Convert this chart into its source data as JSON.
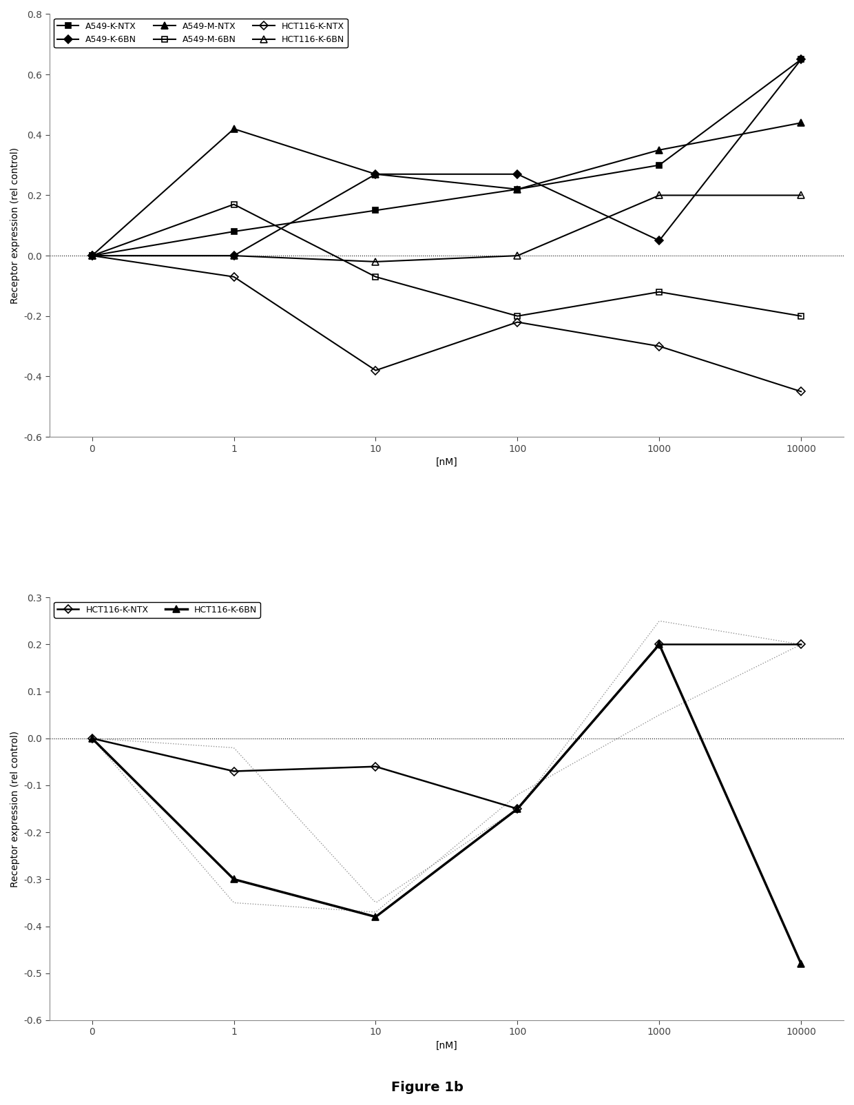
{
  "x_positions": [
    0,
    1,
    2,
    3,
    4,
    5
  ],
  "x_labels": [
    "0",
    "1",
    "10",
    "100",
    "1000",
    "10000"
  ],
  "top_chart": {
    "series": [
      {
        "label": "A549-K-NTX",
        "y": [
          0,
          0.08,
          0.15,
          0.22,
          0.3,
          0.65
        ],
        "marker": "s",
        "markersize": 6,
        "color": "#000000",
        "linestyle": "-",
        "fillstyle": "full",
        "linewidth": 1.5
      },
      {
        "label": "A549-K-6BN",
        "y": [
          0,
          0.0,
          0.27,
          0.27,
          0.05,
          0.65
        ],
        "marker": "D",
        "markersize": 6,
        "color": "#000000",
        "linestyle": "-",
        "fillstyle": "full",
        "linewidth": 1.5
      },
      {
        "label": "A549-M-NTX",
        "y": [
          0,
          0.42,
          0.27,
          0.22,
          0.35,
          0.44
        ],
        "marker": "^",
        "markersize": 7,
        "color": "#000000",
        "linestyle": "-",
        "fillstyle": "full",
        "linewidth": 1.5
      },
      {
        "label": "A549-M-6BN",
        "y": [
          0,
          0.17,
          -0.07,
          -0.2,
          -0.12,
          -0.2
        ],
        "marker": "s",
        "markersize": 6,
        "color": "#000000",
        "linestyle": "-",
        "fillstyle": "none",
        "linewidth": 1.5
      },
      {
        "label": "HCT116-K-NTX",
        "y": [
          0,
          -0.07,
          -0.38,
          -0.22,
          -0.3,
          -0.45
        ],
        "marker": "D",
        "markersize": 6,
        "color": "#000000",
        "linestyle": "-",
        "fillstyle": "none",
        "linewidth": 1.5
      },
      {
        "label": "HCT116-K-6BN",
        "y": [
          0,
          0.0,
          -0.02,
          0.0,
          0.2,
          0.2
        ],
        "marker": "^",
        "markersize": 7,
        "color": "#000000",
        "linestyle": "-",
        "fillstyle": "none",
        "linewidth": 1.5
      }
    ],
    "ylabel": "Receptor expression (rel control)",
    "xlabel": "[nM]",
    "ylim": [
      -0.6,
      0.8
    ],
    "yticks": [
      -0.6,
      -0.4,
      -0.2,
      0.0,
      0.2,
      0.4,
      0.6,
      0.8
    ]
  },
  "bottom_chart": {
    "series": [
      {
        "label": "HCT116-K-NTX",
        "y": [
          0,
          -0.07,
          -0.06,
          -0.15,
          0.2,
          0.2
        ],
        "marker": "D",
        "markersize": 6,
        "color": "#000000",
        "linestyle": "-",
        "fillstyle": "none",
        "linewidth": 1.8
      },
      {
        "label": "HCT116-K-6BN",
        "y": [
          0,
          -0.3,
          -0.38,
          -0.15,
          0.2,
          -0.48
        ],
        "marker": "^",
        "markersize": 7,
        "color": "#000000",
        "linestyle": "-",
        "fillstyle": "full",
        "linewidth": 2.5
      }
    ],
    "ntx_dotted_bg": [
      0,
      -0.02,
      -0.35,
      -0.15,
      0.25,
      0.2
    ],
    "ntx_dotted_bg2": [
      0,
      -0.35,
      -0.37,
      -0.12,
      0.05,
      0.2
    ],
    "ylabel": "Receptor expression (rel control)",
    "xlabel": "[nM]",
    "ylim": [
      -0.6,
      0.3
    ],
    "yticks": [
      -0.6,
      -0.5,
      -0.4,
      -0.3,
      -0.2,
      -0.1,
      0.0,
      0.1,
      0.2,
      0.3
    ]
  },
  "figure_title": "Figure 1b",
  "background_color": "#ffffff",
  "legend_fontsize": 9,
  "axis_fontsize": 10,
  "title_fontsize": 14
}
